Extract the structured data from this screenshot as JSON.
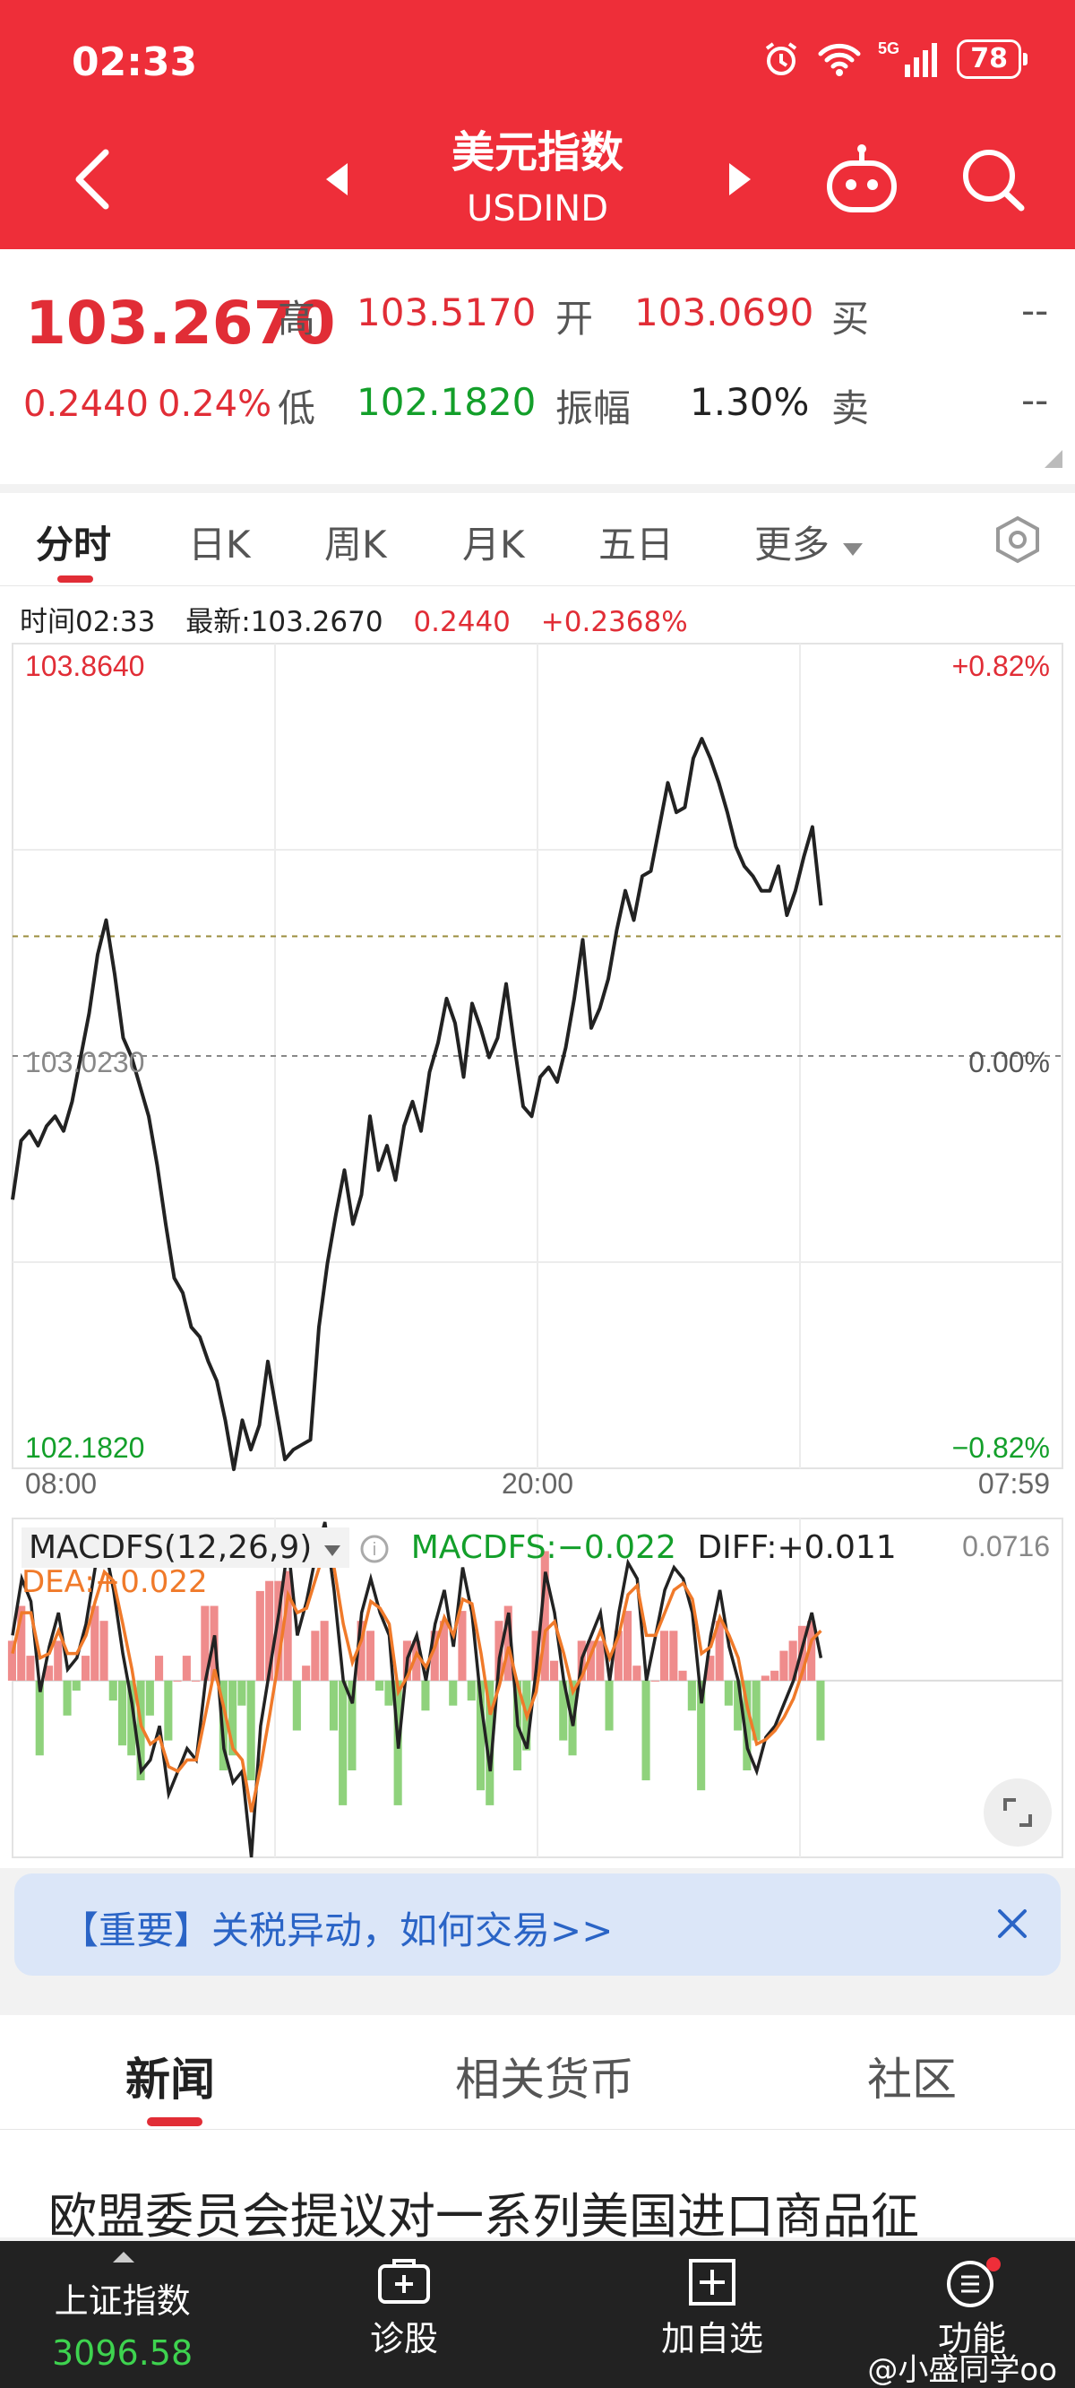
{
  "status_bar": {
    "time": "02:33",
    "battery": "78"
  },
  "header": {
    "title": "美元指数",
    "subtitle": "USDIND"
  },
  "quote": {
    "price": "103.2670",
    "change": "0.2440",
    "change_pct": "0.24%",
    "high_label": "高",
    "high": "103.5170",
    "low_label": "低",
    "low": "102.1820",
    "open_label": "开",
    "open": "103.0690",
    "amplitude_label": "振幅",
    "amplitude": "1.30%",
    "buy_label": "买",
    "buy": "--",
    "sell_label": "卖",
    "sell": "--"
  },
  "tabs": [
    {
      "label": "分时",
      "active": true
    },
    {
      "label": "日K"
    },
    {
      "label": "周K"
    },
    {
      "label": "月K"
    },
    {
      "label": "五日"
    },
    {
      "label": "更多"
    }
  ],
  "info_line": {
    "time": "时间02:33",
    "latest": "最新:103.2670",
    "change": "0.2440",
    "change_pct": "+0.2368%"
  },
  "chart_data": [
    {
      "type": "line",
      "x_labels": [
        "08:00",
        "20:00",
        "07:59"
      ],
      "y_left_labels": {
        "top": "103.8640",
        "mid": "103.0230",
        "bottom": "102.1820"
      },
      "y_right_labels": {
        "top": "+0.82%",
        "mid": "0.00%",
        "bottom": "−0.82%"
      },
      "ylim": [
        102.182,
        103.864
      ],
      "prev_close": 103.023,
      "last": 103.267,
      "x_fraction_end": 0.77,
      "series": [
        {
          "values": [
            102.73,
            102.85,
            102.87,
            102.84,
            102.88,
            102.9,
            102.87,
            102.93,
            103.02,
            103.11,
            103.23,
            103.3,
            103.19,
            103.06,
            103.02,
            102.96,
            102.9,
            102.8,
            102.68,
            102.57,
            102.54,
            102.47,
            102.45,
            102.4,
            102.36,
            102.28,
            102.18,
            102.28,
            102.22,
            102.27,
            102.4,
            102.3,
            102.2,
            102.22,
            102.23,
            102.24,
            102.47,
            102.6,
            102.7,
            102.79,
            102.68,
            102.74,
            102.9,
            102.79,
            102.84,
            102.77,
            102.88,
            102.93,
            102.87,
            102.99,
            103.05,
            103.14,
            103.09,
            102.98,
            103.13,
            103.08,
            103.02,
            103.06,
            103.17,
            103.04,
            102.92,
            102.9,
            102.98,
            103.0,
            102.97,
            103.04,
            103.14,
            103.26,
            103.08,
            103.12,
            103.18,
            103.28,
            103.36,
            103.3,
            103.39,
            103.4,
            103.49,
            103.58,
            103.52,
            103.53,
            103.63,
            103.67,
            103.63,
            103.58,
            103.52,
            103.45,
            103.41,
            103.39,
            103.36,
            103.36,
            103.41,
            103.31,
            103.36,
            103.43,
            103.49,
            103.33
          ]
        }
      ]
    },
    {
      "type": "bar",
      "legend": {
        "name": "MACDFS(12,26,9)",
        "macdfs": "MACDFS:−0.022",
        "diff": "DIFF:+0.011",
        "dea": "DEA:+0.022"
      },
      "y_top_label": "0.0716",
      "ylim": [
        -0.078,
        0.0716
      ],
      "series": [
        {
          "name": "DIFF",
          "values": [
            0.02,
            0.045,
            0.035,
            -0.005,
            0.015,
            0.03,
            0.005,
            0.01,
            0.025,
            0.05,
            0.06,
            0.04,
            0.012,
            -0.01,
            -0.04,
            -0.035,
            -0.02,
            -0.05,
            -0.04,
            -0.03,
            -0.035,
            0.0,
            0.02,
            -0.03,
            -0.045,
            -0.04,
            -0.078,
            -0.02,
            0.005,
            0.03,
            0.06,
            0.02,
            0.035,
            0.055,
            0.07,
            0.04,
            0.0,
            -0.01,
            0.03,
            0.045,
            0.03,
            0.02,
            -0.03,
            0.01,
            0.02,
            0.0,
            0.025,
            0.04,
            0.015,
            0.05,
            0.03,
            -0.01,
            -0.04,
            0.01,
            0.03,
            -0.02,
            -0.03,
            0.005,
            0.048,
            0.03,
            0.0,
            -0.02,
            0.01,
            0.02,
            0.03,
            0.0,
            0.03,
            0.052,
            0.045,
            0.0,
            0.02,
            0.04,
            0.05,
            0.045,
            0.03,
            -0.01,
            0.02,
            0.04,
            0.015,
            0.0,
            -0.03,
            -0.04,
            -0.025,
            -0.02,
            -0.01,
            0.0,
            0.015,
            0.03,
            0.01
          ]
        },
        {
          "name": "DEA",
          "values": [
            0.012,
            0.03,
            0.03,
            0.01,
            0.012,
            0.022,
            0.012,
            0.012,
            0.02,
            0.035,
            0.048,
            0.044,
            0.025,
            0.005,
            -0.02,
            -0.028,
            -0.025,
            -0.038,
            -0.04,
            -0.035,
            -0.035,
            -0.015,
            0.005,
            -0.012,
            -0.03,
            -0.035,
            -0.058,
            -0.038,
            -0.015,
            0.01,
            0.038,
            0.03,
            0.032,
            0.045,
            0.058,
            0.05,
            0.025,
            0.008,
            0.018,
            0.035,
            0.032,
            0.025,
            -0.005,
            0.002,
            0.012,
            0.006,
            0.015,
            0.028,
            0.02,
            0.036,
            0.034,
            0.012,
            -0.015,
            -0.002,
            0.015,
            -0.002,
            -0.016,
            -0.005,
            0.022,
            0.026,
            0.012,
            -0.005,
            0.002,
            0.012,
            0.022,
            0.01,
            0.02,
            0.038,
            0.042,
            0.02,
            0.02,
            0.03,
            0.04,
            0.043,
            0.036,
            0.012,
            0.015,
            0.028,
            0.02,
            0.01,
            -0.012,
            -0.028,
            -0.026,
            -0.022,
            -0.016,
            -0.008,
            0.004,
            0.018,
            0.022
          ]
        }
      ]
    }
  ],
  "banner": {
    "text": "【重要】关税异动，如何交易>>"
  },
  "news_tabs": [
    {
      "label": "新闻",
      "active": true
    },
    {
      "label": "相关货币"
    },
    {
      "label": "社区"
    }
  ],
  "headline": "欧盟委员会提议对一系列美国进口商品征",
  "bottom_nav": {
    "index_name": "上证指数",
    "index_value": "3096.58",
    "diagnose": "诊股",
    "add_watch": "加自选",
    "functions": "功能"
  },
  "watermark": "@小盛同学oo",
  "colors": {
    "brand_red": "#ee2e39",
    "up": "#e12d36",
    "down": "#139f2a",
    "dea": "#f07a2a",
    "banner_text": "#2a64c6"
  }
}
